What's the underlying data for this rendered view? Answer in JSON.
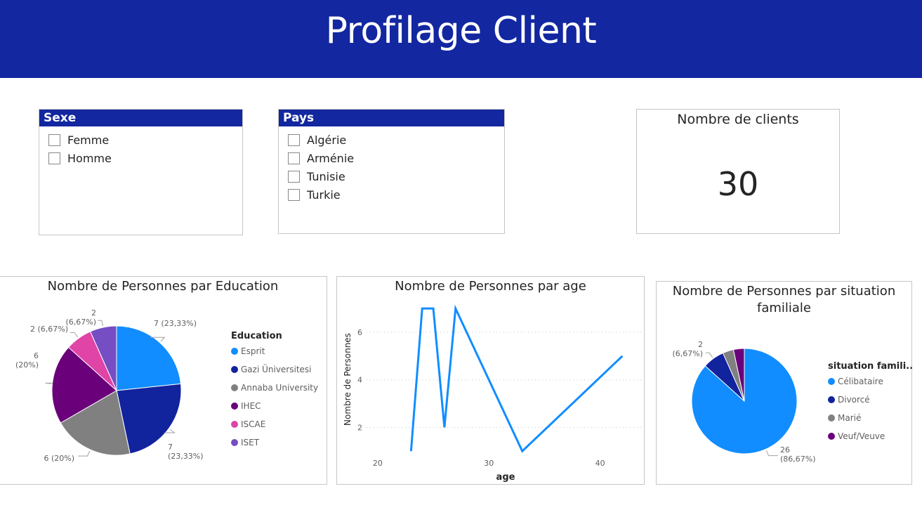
{
  "header": {
    "title": "Profilage Client"
  },
  "slicer_sexe": {
    "title": "Sexe",
    "items": [
      {
        "label": "Femme"
      },
      {
        "label": "Homme"
      }
    ]
  },
  "slicer_pays": {
    "title": "Pays",
    "items": [
      {
        "label": "Algérie"
      },
      {
        "label": "Arménie"
      },
      {
        "label": "Tunisie"
      },
      {
        "label": "Turkie"
      }
    ]
  },
  "kpi": {
    "title": "Nombre de clients",
    "value": "30"
  },
  "chart_education": {
    "title": "Nombre de Personnes par Education",
    "legend_title": "Education"
  },
  "chart_age": {
    "title": "Nombre de Personnes par age"
  },
  "chart_situation": {
    "title_line1": "Nombre de Personnes par situation",
    "title_line2": "familiale",
    "legend_title": "situation famili..."
  },
  "chart_data": [
    {
      "type": "pie",
      "title": "Nombre de Personnes par Education",
      "legend_title": "Education",
      "legend_position": "right",
      "categories": [
        "Esprit",
        "Gazi Üniversitesi",
        "Annaba University",
        "IHEC",
        "ISCAE",
        "ISET"
      ],
      "values": [
        7,
        7,
        6,
        6,
        2,
        2
      ],
      "data_labels": [
        "7 (23,33%)",
        "7 (23,33%)",
        "6 (20%)",
        "6 (20%)",
        "2 (6,67%)",
        "2 (6,67%)"
      ],
      "colors": [
        "#118dff",
        "#12239e",
        "#808080",
        "#6b007b",
        "#e044a7",
        "#744ec2"
      ]
    },
    {
      "type": "line",
      "title": "Nombre de Personnes par age",
      "xlabel": "age",
      "ylabel": "Nombre de Personnes",
      "x_ticks": [
        20,
        30,
        40
      ],
      "y_ticks": [
        2,
        4,
        6
      ],
      "xlim": [
        19,
        44
      ],
      "ylim": [
        0.8,
        7.3
      ],
      "grid": true,
      "color": "#118dff",
      "series": [
        {
          "x": [
            23,
            24,
            25,
            26,
            27,
            33,
            42
          ],
          "y": [
            1,
            7,
            7,
            2,
            7,
            1,
            5
          ]
        }
      ]
    },
    {
      "type": "pie",
      "title": "Nombre de Personnes par situation familiale",
      "legend_title": "situation famili...",
      "legend_position": "right",
      "categories": [
        "Célibataire",
        "Divorcé",
        "Marié",
        "Veuf/Veuve"
      ],
      "values": [
        26,
        2,
        1,
        1
      ],
      "data_labels": [
        "26 (86,67%)",
        "2 (6,67%)",
        "",
        ""
      ],
      "colors": [
        "#118dff",
        "#12239e",
        "#808080",
        "#6b007b"
      ]
    }
  ]
}
